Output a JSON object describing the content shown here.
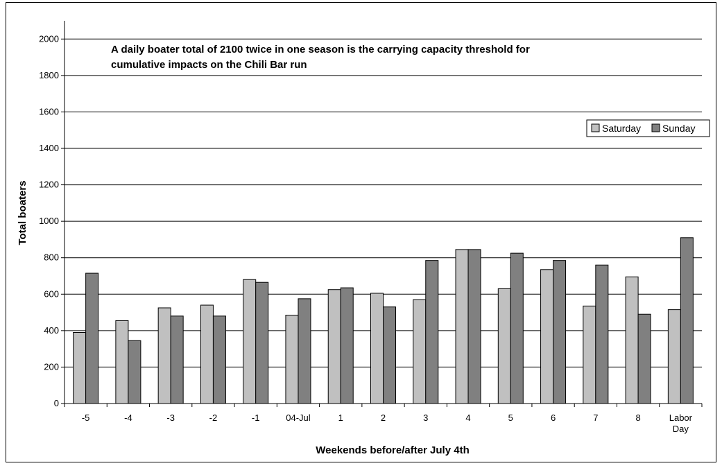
{
  "chart_data": {
    "type": "bar",
    "title": "",
    "annotation": [
      "A daily boater total of 2100 twice in one season is the carrying capacity threshold for",
      "cumulative impacts on the Chili Bar run"
    ],
    "xlabel": "Weekends before/after July 4th",
    "ylabel": "Total boaters",
    "ylim": [
      0,
      2100
    ],
    "yticks": [
      0,
      200,
      400,
      600,
      800,
      1000,
      1200,
      1400,
      1600,
      1800,
      2000
    ],
    "grid": "horizontal",
    "legend_position": "top-right",
    "categories": [
      [
        "-5"
      ],
      [
        "-4"
      ],
      [
        "-3"
      ],
      [
        "-2"
      ],
      [
        "-1"
      ],
      [
        "04-Jul"
      ],
      [
        "1"
      ],
      [
        "2"
      ],
      [
        "3"
      ],
      [
        "4"
      ],
      [
        "5"
      ],
      [
        "6"
      ],
      [
        "7"
      ],
      [
        "8"
      ],
      [
        "Labor",
        "Day"
      ]
    ],
    "series": [
      {
        "name": "Saturday",
        "color": "#c0c0c0",
        "values": [
          390,
          455,
          525,
          540,
          680,
          485,
          625,
          605,
          570,
          845,
          630,
          735,
          535,
          695,
          515
        ]
      },
      {
        "name": "Sunday",
        "color": "#808080",
        "values": [
          715,
          345,
          480,
          480,
          665,
          575,
          635,
          530,
          785,
          845,
          825,
          785,
          760,
          490,
          910
        ]
      }
    ]
  }
}
